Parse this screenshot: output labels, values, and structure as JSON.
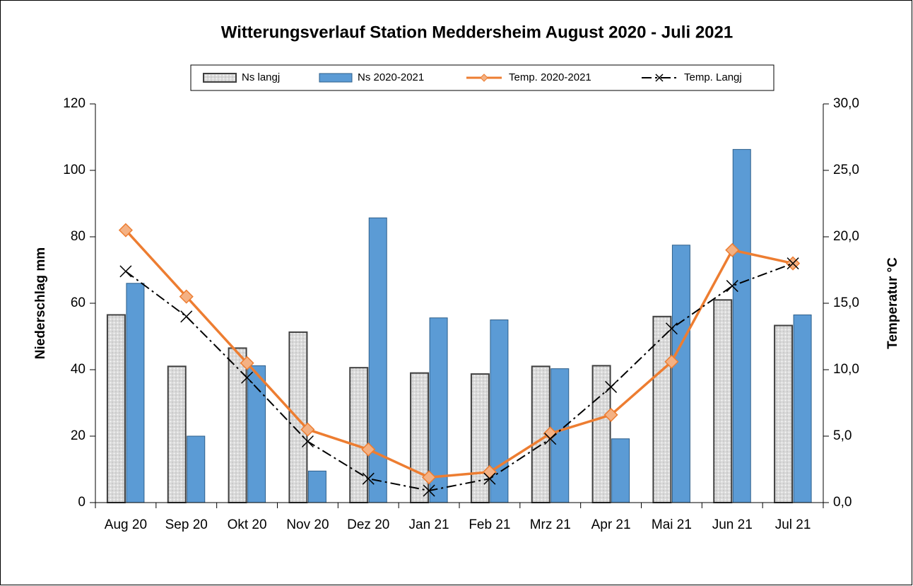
{
  "chart_data": {
    "type": "bar_line",
    "title": "Witterungsverlauf Station Meddersheim August 2020 - Juli 2021",
    "ylabel": "Niederschlag mm",
    "y2label": "Temperatur °C",
    "categories": [
      "Aug 20",
      "Sep 20",
      "Okt 20",
      "Nov 20",
      "Dez 20",
      "Jan 21",
      "Feb 21",
      "Mrz 21",
      "Apr 21",
      "Mai 21",
      "Jun 21",
      "Jul 21"
    ],
    "series": [
      {
        "name": "Ns langj",
        "type": "bar",
        "color": "#d9d9d9",
        "values": [
          56.5,
          41,
          46.5,
          51.3,
          40.6,
          39,
          38.7,
          41,
          41.2,
          56,
          61,
          53.3
        ]
      },
      {
        "name": "Ns 2020-2021",
        "type": "bar",
        "color": "#5b9bd5",
        "values": [
          66,
          20,
          41.2,
          9.5,
          85.7,
          55.6,
          55,
          40.3,
          19.2,
          77.5,
          106.3,
          56.5
        ]
      },
      {
        "name": "Temp. 2020-2021",
        "type": "line",
        "axis": "y2",
        "color": "#ed7d31",
        "values": [
          20.5,
          15.5,
          10.5,
          5.5,
          4.0,
          1.9,
          2.3,
          5.2,
          6.6,
          10.6,
          19.0,
          18.0
        ]
      },
      {
        "name": "Temp. Langj",
        "type": "line",
        "axis": "y2",
        "color": "#000000",
        "values": [
          17.4,
          14.0,
          9.4,
          4.6,
          1.8,
          0.9,
          1.8,
          4.8,
          8.7,
          13.1,
          16.3,
          18.0
        ]
      }
    ],
    "ylim": [
      0,
      120
    ],
    "yticks": [
      0,
      20,
      40,
      60,
      80,
      100,
      120
    ],
    "y2lim": [
      0,
      30
    ],
    "y2ticks": [
      {
        "value": 0,
        "label": "0,0"
      },
      {
        "value": 5,
        "label": "5,0"
      },
      {
        "value": 10,
        "label": "10,0"
      },
      {
        "value": 15,
        "label": "15,0"
      },
      {
        "value": 20,
        "label": "20,0"
      },
      {
        "value": 25,
        "label": "25,0"
      },
      {
        "value": 30,
        "label": "30,0"
      }
    ],
    "legend": "top"
  }
}
